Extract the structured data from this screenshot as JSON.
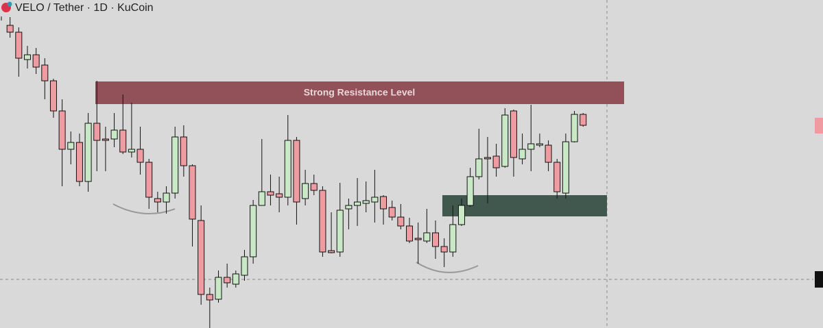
{
  "chart_data": {
    "type": "candlestick",
    "title": "VELO / Tether · 1D · KuCoin",
    "annotation": "Strong Resistance Level",
    "up_color": "#c9e8c6",
    "down_color": "#ee9ca1",
    "ylim": [
      0,
      479
    ],
    "open": [
      471,
      442,
      432,
      392,
      399,
      384,
      361,
      317,
      261,
      271,
      214,
      299,
      276,
      276,
      289,
      257,
      261,
      242,
      189,
      184,
      197,
      279,
      237,
      157,
      49,
      42,
      74,
      64,
      77,
      104,
      179,
      199,
      196,
      191,
      274,
      189,
      211,
      201,
      113,
      111,
      174,
      179,
      182,
      184,
      192,
      176,
      162,
      149,
      131,
      127,
      139,
      119,
      111,
      151,
      179,
      221,
      249,
      251,
      236,
      317,
      247,
      261,
      267,
      267,
      242,
      197,
      272,
      312
    ],
    "high": [
      479,
      454,
      439,
      412,
      409,
      394,
      364,
      334,
      287,
      284,
      314,
      361,
      294,
      314,
      341,
      329,
      294,
      247,
      199,
      207,
      294,
      296,
      239,
      179,
      59,
      84,
      94,
      84,
      114,
      187,
      276,
      224,
      221,
      311,
      279,
      231,
      224,
      207,
      169,
      212,
      189,
      219,
      214,
      231,
      194,
      186,
      181,
      161,
      154,
      174,
      157,
      131,
      179,
      189,
      234,
      291,
      279,
      269,
      321,
      319,
      284,
      326,
      284,
      274,
      247,
      284,
      317,
      314
    ],
    "low": [
      449,
      424,
      367,
      379,
      371,
      334,
      307,
      207,
      239,
      207,
      199,
      229,
      229,
      264,
      254,
      249,
      224,
      174,
      169,
      167,
      189,
      221,
      119,
      34,
      0,
      37,
      59,
      59,
      69,
      94,
      179,
      179,
      169,
      179,
      151,
      179,
      194,
      104,
      109,
      104,
      144,
      149,
      169,
      154,
      151,
      157,
      144,
      124,
      94,
      124,
      101,
      89,
      104,
      149,
      177,
      217,
      182,
      221,
      234,
      221,
      239,
      229,
      264,
      229,
      189,
      189,
      271,
      294
    ],
    "close": [
      457,
      432,
      394,
      399,
      381,
      361,
      317,
      261,
      271,
      214,
      299,
      274,
      274,
      289,
      257,
      261,
      242,
      191,
      184,
      197,
      279,
      237,
      159,
      49,
      41,
      74,
      66,
      79,
      104,
      179,
      199,
      194,
      191,
      274,
      184,
      211,
      201,
      111,
      110,
      172,
      179,
      184,
      186,
      191,
      174,
      162,
      149,
      127,
      129,
      139,
      119,
      111,
      151,
      179,
      221,
      247,
      247,
      234,
      311,
      249,
      261,
      269,
      269,
      242,
      199,
      272,
      312,
      296
    ]
  }
}
